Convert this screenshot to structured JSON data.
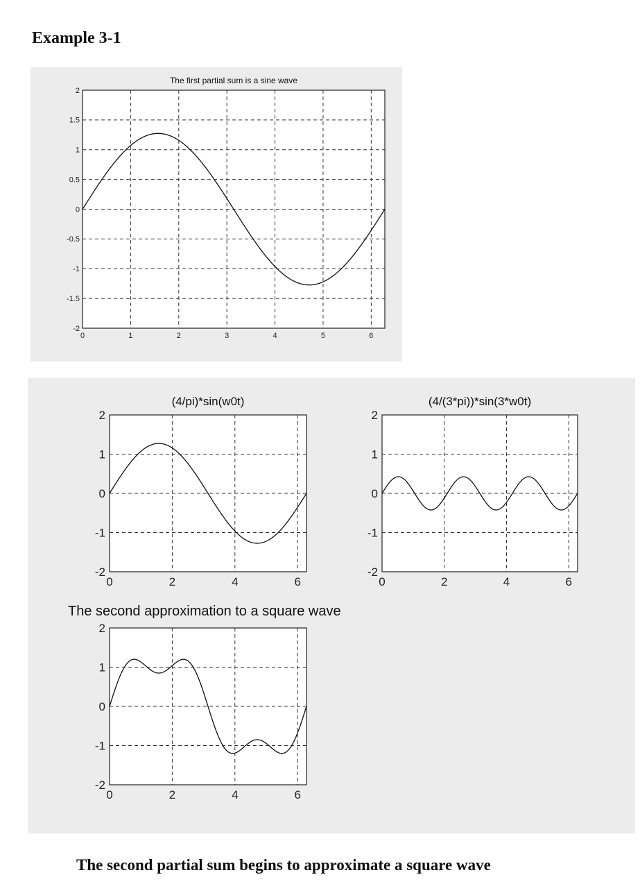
{
  "page": {
    "heading": "Example 3-1",
    "between_title": "The second approximation to a square wave",
    "footer": "The second partial sum begins to approximate a square wave"
  },
  "chart_data": [
    {
      "type": "line",
      "title": "The first partial sum is a sine wave",
      "xlabel": "",
      "ylabel": "",
      "xlim": [
        0,
        6.2832
      ],
      "ylim": [
        -2,
        2
      ],
      "xticks": [
        0,
        1,
        2,
        3,
        4,
        5,
        6
      ],
      "yticks": [
        2,
        1.5,
        1,
        0.5,
        0,
        -0.5,
        -1,
        -1.5,
        -2
      ],
      "ytick_labels": [
        "2",
        "1.5",
        "1",
        "0.5",
        "0",
        "-0.5",
        "-1",
        "-1.5",
        "-2"
      ],
      "grid": true,
      "series": [
        {
          "function": "(4/pi)*sin(t)",
          "x_range": [
            0,
            6.2832
          ],
          "peak": 1.273
        }
      ]
    },
    {
      "type": "line",
      "title": "(4/pi)*sin(w0t)",
      "xlabel": "",
      "ylabel": "",
      "xlim": [
        0,
        6.2832
      ],
      "ylim": [
        -2,
        2
      ],
      "xticks": [
        0,
        2,
        4,
        6
      ],
      "yticks": [
        2,
        1,
        0,
        -1,
        -2
      ],
      "ytick_labels": [
        "2",
        "1",
        "0",
        "-1",
        "-2"
      ],
      "grid": true,
      "series": [
        {
          "function": "(4/pi)*sin(t)",
          "x_range": [
            0,
            6.2832
          ],
          "peak": 1.273
        }
      ]
    },
    {
      "type": "line",
      "title": "(4/(3*pi))*sin(3*w0t)",
      "xlabel": "",
      "ylabel": "",
      "xlim": [
        0,
        6.2832
      ],
      "ylim": [
        -2,
        2
      ],
      "xticks": [
        0,
        2,
        4,
        6
      ],
      "yticks": [
        2,
        1,
        0,
        -1,
        -2
      ],
      "ytick_labels": [
        "2",
        "1",
        "0",
        "-1",
        "-2"
      ],
      "grid": true,
      "series": [
        {
          "function": "(4/(3*pi))*sin(3*t)",
          "x_range": [
            0,
            6.2832
          ],
          "peak": 0.424
        }
      ]
    },
    {
      "type": "line",
      "title": "",
      "xlabel": "",
      "ylabel": "",
      "xlim": [
        0,
        6.2832
      ],
      "ylim": [
        -2,
        2
      ],
      "xticks": [
        0,
        2,
        4,
        6
      ],
      "yticks": [
        2,
        1,
        0,
        -1,
        -2
      ],
      "ytick_labels": [
        "2",
        "1",
        "0",
        "-1",
        "-2"
      ],
      "grid": true,
      "series": [
        {
          "function": "(4/pi)*sin(t)+(4/(3*pi))*sin(3*t)",
          "x_range": [
            0,
            6.2832
          ],
          "peak": 1.2
        }
      ]
    }
  ]
}
